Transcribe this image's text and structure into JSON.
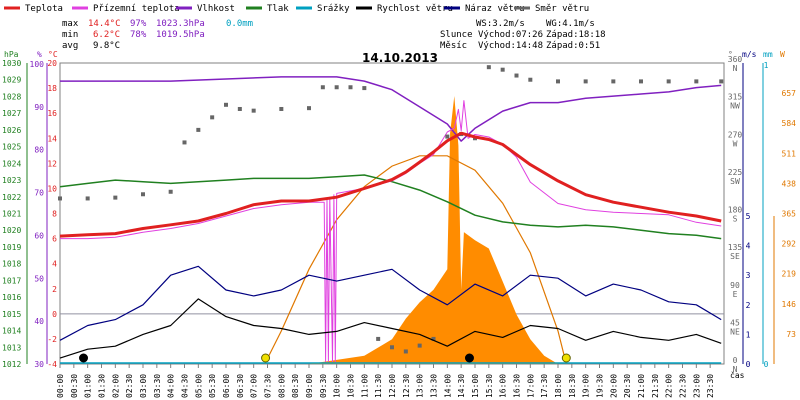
{
  "chart_data": {
    "type": "line",
    "title": "14.10.2013",
    "legend": [
      {
        "label": "Teplota",
        "color": "#e02020"
      },
      {
        "label": "Přízemní teplota",
        "color": "#e040e0"
      },
      {
        "label": "Vlhkost",
        "color": "#8020c0"
      },
      {
        "label": "Tlak",
        "color": "#208020"
      },
      {
        "label": "Srážky",
        "color": "#00a0c0"
      },
      {
        "label": "Rychlost větru",
        "color": "#000000"
      },
      {
        "label": "Náraz větru",
        "color": "#000080"
      },
      {
        "label": "Směr větru",
        "color": "#666666"
      }
    ],
    "stats": {
      "max": {
        "label": "max",
        "temp": "14.4°C",
        "humidity": "97%",
        "pressure": "1023.3hPa",
        "rain": "0.0mm"
      },
      "min": {
        "label": "min",
        "temp": "6.2°C",
        "humidity": "78%",
        "pressure": "1019.5hPa"
      },
      "avg": {
        "label": "avg",
        "temp": "9.8°C"
      }
    },
    "wind_info": {
      "ws": "WS:3.2m/s",
      "wg": "WG:4.1m/s"
    },
    "sun_info": {
      "label": "Slunce",
      "rise": "Východ:07:26",
      "set": "Západ:18:18"
    },
    "moon_info": {
      "label": "Měsíc",
      "rise": "Východ:14:48",
      "set": "Západ:0:51"
    },
    "axis_units": {
      "pressure": "hPa",
      "humidity": "%",
      "temp": "°C",
      "direction": "°",
      "wind": "m/s",
      "rain": "mm",
      "time": "čas",
      "radiation": "W"
    },
    "axes": {
      "pressure_ticks": [
        "1030",
        "1029",
        "1028",
        "1027",
        "1026",
        "1025",
        "1024",
        "1023",
        "1022",
        "1021",
        "1020",
        "1019",
        "1018",
        "1017",
        "1016",
        "1015",
        "1014",
        "1013",
        "1012"
      ],
      "humidity_ticks": [
        "100",
        "90",
        "80",
        "70",
        "60",
        "50",
        "40",
        "30"
      ],
      "temp_ticks": [
        "20",
        "18",
        "16",
        "14",
        "12",
        "10",
        "8",
        "6",
        "4",
        "2",
        "0",
        "-2",
        "-4"
      ],
      "direction_ticks": [
        {
          "deg": "360",
          "dir": "N"
        },
        {
          "deg": "315",
          "dir": "NW"
        },
        {
          "deg": "270",
          "dir": "W"
        },
        {
          "deg": "225",
          "dir": "SW"
        },
        {
          "deg": "180",
          "dir": "S"
        },
        {
          "deg": "135",
          "dir": "SE"
        },
        {
          "deg": "90",
          "dir": "E"
        },
        {
          "deg": "45",
          "dir": "NE"
        },
        {
          "deg": "0",
          "dir": "N"
        }
      ],
      "wind_ticks": [
        "5",
        "4",
        "3",
        "2",
        "1",
        "0"
      ],
      "rain_ticks": [
        "1",
        "0"
      ],
      "radiation_ticks": [
        "657",
        "584",
        "511",
        "438",
        "365",
        "292",
        "219",
        "146",
        "73"
      ],
      "time_ticks": [
        "00:00",
        "00:30",
        "01:00",
        "01:30",
        "02:00",
        "02:30",
        "03:00",
        "03:30",
        "04:00",
        "04:30",
        "05:00",
        "05:30",
        "06:00",
        "06:30",
        "07:00",
        "07:30",
        "08:00",
        "08:30",
        "09:00",
        "09:30",
        "10:00",
        "10:30",
        "11:00",
        "11:30",
        "12:00",
        "12:30",
        "13:00",
        "13:30",
        "14:00",
        "14:30",
        "15:00",
        "15:30",
        "16:00",
        "16:30",
        "17:00",
        "17:30",
        "18:00",
        "18:30",
        "19:00",
        "19:30",
        "20:00",
        "20:30",
        "21:00",
        "21:30",
        "22:00",
        "22:30",
        "23:00",
        "23:30"
      ]
    },
    "series": [
      {
        "name": "Teplota",
        "x": [
          0,
          1,
          2,
          3,
          4,
          5,
          6,
          7,
          8,
          9,
          10,
          11,
          12,
          12.5,
          13,
          13.5,
          14,
          14.5,
          15,
          15.5,
          16,
          17,
          18,
          19,
          20,
          21,
          22,
          23,
          23.9
        ],
        "y": [
          6.2,
          6.3,
          6.4,
          6.8,
          7.1,
          7.4,
          8.0,
          8.7,
          9.0,
          9.0,
          9.3,
          10.0,
          10.7,
          11.3,
          12.1,
          12.9,
          13.8,
          14.4,
          14.1,
          13.9,
          13.5,
          11.9,
          10.6,
          9.5,
          8.9,
          8.5,
          8.1,
          7.8,
          7.4
        ]
      },
      {
        "name": "Přízemní teplota",
        "x": [
          0,
          1,
          2,
          3,
          4,
          5,
          6,
          7,
          8,
          9,
          9.55,
          9.6,
          9.65,
          9.7,
          9.75,
          9.85,
          9.9,
          9.95,
          10,
          11,
          12,
          12.5,
          13,
          13.5,
          14,
          14.25,
          14.4,
          14.5,
          14.6,
          14.75,
          15,
          15.5,
          16,
          16.5,
          17,
          18,
          19,
          20,
          21,
          22,
          23,
          23.9
        ],
        "y": [
          6.0,
          6.0,
          6.1,
          6.5,
          6.8,
          7.2,
          7.8,
          8.4,
          8.7,
          8.9,
          8.9,
          -3.8,
          9.2,
          -3.8,
          9.3,
          -3.8,
          9.5,
          -3.8,
          9.6,
          10.0,
          10.6,
          11.2,
          12.0,
          12.7,
          14.5,
          14.8,
          16.3,
          14.6,
          17.0,
          14.0,
          14.3,
          14.1,
          13.5,
          12.5,
          10.5,
          8.8,
          8.3,
          8.1,
          8.0,
          7.9,
          7.3,
          7.0
        ]
      },
      {
        "name": "Vlhkost",
        "x": [
          0,
          2,
          4,
          6,
          8,
          10,
          11,
          12,
          13,
          14,
          14.5,
          15,
          16,
          17,
          18,
          19,
          20,
          21,
          22,
          23,
          23.9
        ],
        "y": [
          96,
          96,
          96,
          96.5,
          97,
          97,
          96,
          94,
          90,
          86,
          82,
          85,
          89,
          91,
          91,
          92,
          92.5,
          93,
          93.5,
          94.5,
          95
        ]
      },
      {
        "name": "Tlak",
        "x": [
          0,
          1,
          2,
          3,
          4,
          5,
          6,
          7,
          8,
          9,
          10,
          11,
          12,
          13,
          14,
          15,
          16,
          17,
          18,
          19,
          20,
          21,
          22,
          23,
          23.9
        ],
        "y": [
          1022.6,
          1022.8,
          1023.0,
          1022.9,
          1022.8,
          1022.9,
          1023.0,
          1023.1,
          1023.1,
          1023.1,
          1023.2,
          1023.3,
          1022.9,
          1022.4,
          1021.7,
          1020.9,
          1020.5,
          1020.3,
          1020.2,
          1020.3,
          1020.2,
          1020.0,
          1019.8,
          1019.7,
          1019.5
        ]
      },
      {
        "name": "Srážky",
        "x": [
          0,
          23.9
        ],
        "y": [
          0,
          0
        ]
      },
      {
        "name": "Rychlost větru",
        "x": [
          0,
          1,
          2,
          3,
          4,
          5,
          6,
          7,
          8,
          9,
          10,
          11,
          12,
          13,
          14,
          15,
          16,
          17,
          18,
          19,
          20,
          21,
          22,
          23,
          23.9
        ],
        "y": [
          0.2,
          0.5,
          0.6,
          1.0,
          1.3,
          2.2,
          1.6,
          1.3,
          1.2,
          1.0,
          1.1,
          1.4,
          1.2,
          1.0,
          0.6,
          1.1,
          0.9,
          1.3,
          1.2,
          0.8,
          1.1,
          0.9,
          0.8,
          1.0,
          0.7
        ]
      },
      {
        "name": "Náraz větru",
        "x": [
          0,
          1,
          2,
          3,
          4,
          5,
          6,
          7,
          8,
          9,
          10,
          11,
          12,
          13,
          14,
          15,
          16,
          17,
          18,
          19,
          20,
          21,
          22,
          23,
          23.9
        ],
        "y": [
          0.8,
          1.3,
          1.5,
          2.0,
          3.0,
          3.3,
          2.5,
          2.3,
          2.5,
          3.0,
          2.8,
          3.0,
          3.2,
          2.5,
          2.0,
          2.7,
          2.3,
          3.0,
          2.9,
          2.3,
          2.7,
          2.5,
          2.1,
          2.0,
          1.5
        ]
      },
      {
        "name": "Směr větru",
        "x": [
          0,
          1,
          2,
          3,
          4,
          4.5,
          5,
          5.5,
          6,
          6.5,
          7,
          8,
          9,
          9.5,
          10,
          10.5,
          11,
          11.5,
          12,
          12.5,
          13,
          13.5,
          14,
          14.5,
          15,
          15.5,
          16,
          16.5,
          17,
          18,
          19,
          20,
          21,
          22,
          23,
          23.9
        ],
        "y": [
          198,
          198,
          199,
          203,
          206,
          265,
          280,
          295,
          310,
          305,
          303,
          305,
          306,
          331,
          331,
          331,
          330,
          30,
          20,
          15,
          22,
          30,
          272,
          275,
          270,
          355,
          352,
          345,
          340,
          338,
          338,
          338,
          338,
          338,
          338,
          338
        ]
      }
    ],
    "radiation": {
      "x": [
        9,
        10,
        11,
        12,
        12.5,
        13,
        13.5,
        14,
        14.1,
        14.25,
        14.4,
        14.5,
        14.6,
        15,
        15.5,
        16,
        16.5,
        17,
        17.5,
        18
      ],
      "y": [
        0,
        10,
        20,
        60,
        110,
        150,
        180,
        230,
        560,
        650,
        530,
        180,
        320,
        300,
        280,
        200,
        120,
        60,
        20,
        0
      ]
    },
    "radiation_theoretical": {
      "x": [
        7.4,
        8,
        9,
        10,
        11,
        12,
        13,
        14,
        15,
        16,
        17,
        18,
        18.3
      ],
      "y": [
        0,
        80,
        230,
        350,
        430,
        480,
        505,
        505,
        470,
        390,
        270,
        80,
        0
      ]
    },
    "markers": [
      {
        "type": "sun",
        "x": 7.43,
        "label": "Východ:07:26"
      },
      {
        "type": "sun",
        "x": 18.3,
        "label": "Západ:18:18"
      },
      {
        "type": "moon",
        "x": 14.8
      },
      {
        "type": "moon",
        "x": 0.85
      }
    ]
  }
}
